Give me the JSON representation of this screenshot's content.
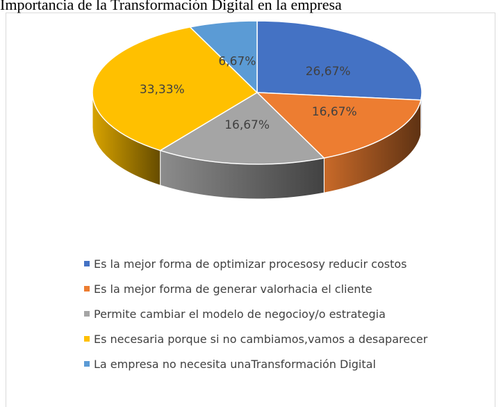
{
  "chart_data": {
    "type": "pie",
    "title": "Importancia de la Transformación Digital en la empresa",
    "categories": [
      "Es la mejor forma de optimizar procesosy reducir costos",
      "Es la mejor forma de generar valorhacia el cliente",
      "Permite cambiar el modelo de negocioy/o estrategia",
      "Es necesaria porque si no cambiamos,vamos a desaparecer",
      "La empresa no necesita unaTransformación Digital"
    ],
    "values": [
      26.67,
      16.67,
      16.67,
      33.33,
      6.67
    ],
    "value_labels": [
      "26,67%",
      "16,67%",
      "16,67%",
      "33,33%",
      "6,67%"
    ],
    "colors": [
      "#4472c4",
      "#ed7d31",
      "#a5a5a5",
      "#ffc000",
      "#5b9bd5"
    ],
    "legend": "bottom"
  }
}
